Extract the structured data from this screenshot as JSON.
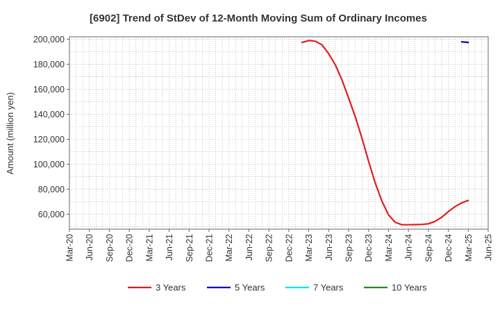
{
  "chart_data": {
    "type": "line",
    "title": "[6902]  Trend of StDev of 12-Month Moving Sum of Ordinary Incomes",
    "xlabel": "",
    "ylabel": "Amount (million yen)",
    "ylim": [
      48000,
      202000
    ],
    "y_ticks": [
      60000,
      80000,
      100000,
      120000,
      140000,
      160000,
      180000,
      200000
    ],
    "y_tick_labels": [
      "60,000",
      "80,000",
      "100,000",
      "120,000",
      "140,000",
      "160,000",
      "180,000",
      "200,000"
    ],
    "x_ticks": [
      "Mar-20",
      "Jun-20",
      "Sep-20",
      "Dec-20",
      "Mar-21",
      "Jun-21",
      "Sep-21",
      "Dec-21",
      "Mar-22",
      "Jun-22",
      "Sep-22",
      "Dec-22",
      "Mar-23",
      "Jun-23",
      "Sep-23",
      "Dec-23",
      "Mar-24",
      "Jun-24",
      "Sep-24",
      "Dec-24",
      "Mar-25",
      "Jun-25"
    ],
    "grid": true,
    "legend_position": "bottom",
    "series": [
      {
        "name": "3 Years",
        "color": "#e31a1c",
        "x": [
          "Feb-23",
          "Mar-23",
          "Apr-23",
          "May-23",
          "Jun-23",
          "Jul-23",
          "Aug-23",
          "Sep-23",
          "Oct-23",
          "Nov-23",
          "Dec-23",
          "Jan-24",
          "Feb-24",
          "Mar-24",
          "Apr-24",
          "May-24",
          "Jun-24",
          "Jul-24",
          "Aug-24",
          "Sep-24",
          "Oct-24",
          "Nov-24",
          "Dec-24",
          "Jan-25",
          "Feb-25",
          "Mar-25"
        ],
        "values": [
          197500,
          199000,
          198500,
          195500,
          188500,
          179500,
          167500,
          153000,
          138000,
          121000,
          102500,
          85000,
          70500,
          59500,
          53500,
          51500,
          51500,
          51600,
          51800,
          52300,
          54200,
          57500,
          62000,
          66000,
          69000,
          71000
        ]
      },
      {
        "name": "5 Years",
        "color": "#0000cc",
        "x": [
          "Feb-25",
          "Mar-25"
        ],
        "values": [
          198000,
          197500
        ]
      },
      {
        "name": "7 Years",
        "color": "#00e5ee",
        "x": [],
        "values": []
      },
      {
        "name": "10 Years",
        "color": "#228b22",
        "x": [],
        "values": []
      }
    ]
  }
}
